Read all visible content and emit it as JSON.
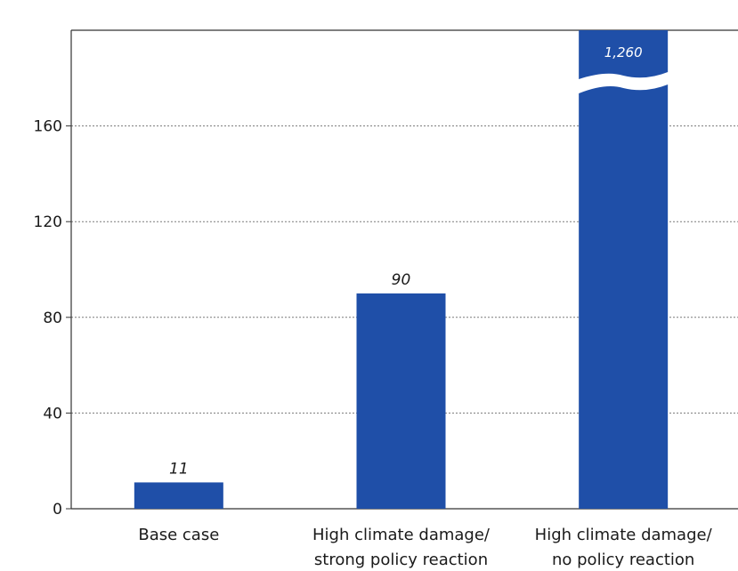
{
  "chart_data": {
    "type": "bar",
    "title": "",
    "xlabel": "",
    "ylabel": "",
    "ylim": [
      0,
      200
    ],
    "yticks": [
      0,
      40,
      80,
      120,
      160
    ],
    "ytick_labels": [
      "0",
      "40",
      "80",
      "120",
      "160"
    ],
    "categories": [
      [
        "Base case"
      ],
      [
        "High climate damage/",
        "strong policy reaction"
      ],
      [
        "High climate damage/",
        "no policy reaction"
      ]
    ],
    "values": [
      11,
      90,
      1260
    ],
    "value_labels": [
      "11",
      "90",
      "1,260"
    ],
    "axis_break": true,
    "grid": "horizontal dotted",
    "bar_color": "#1f4fa8"
  }
}
